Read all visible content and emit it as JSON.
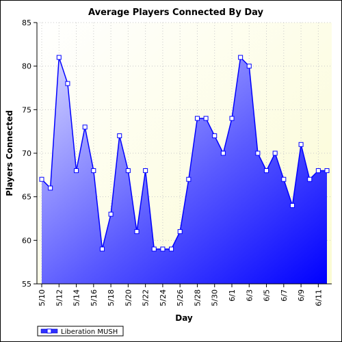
{
  "chart_data": {
    "type": "area",
    "title": "Average Players Connected By Day",
    "xlabel": "Day",
    "ylabel": "Players Connected",
    "ylim": [
      55,
      85
    ],
    "y_ticks": [
      55,
      60,
      65,
      70,
      75,
      80,
      85
    ],
    "x_ticks": [
      "5/10",
      "5/12",
      "5/14",
      "5/16",
      "5/18",
      "5/20",
      "5/22",
      "5/24",
      "5/26",
      "5/28",
      "5/30",
      "6/1",
      "6/3",
      "6/5",
      "6/7",
      "6/9",
      "6/11"
    ],
    "grid": true,
    "legend_position": "bottom-left",
    "categories": [
      "5/10",
      "5/11",
      "5/12",
      "5/13",
      "5/14",
      "5/15",
      "5/16",
      "5/17",
      "5/18",
      "5/19",
      "5/20",
      "5/21",
      "5/22",
      "5/23",
      "5/24",
      "5/25",
      "5/26",
      "5/27",
      "5/28",
      "5/29",
      "5/30",
      "5/31",
      "6/1",
      "6/2",
      "6/3",
      "6/4",
      "6/5",
      "6/6",
      "6/7",
      "6/8",
      "6/9",
      "6/10",
      "6/11",
      "6/12"
    ],
    "series": [
      {
        "name": "Liberation MUSH",
        "color": "#0000ff",
        "values": [
          67,
          66,
          81,
          78,
          68,
          73,
          68,
          59,
          63,
          72,
          68,
          61,
          68,
          59,
          59,
          59,
          61,
          67,
          74,
          74,
          72,
          70,
          74,
          81,
          80,
          70,
          68,
          70,
          67,
          64,
          71,
          67,
          68,
          68
        ]
      }
    ]
  }
}
